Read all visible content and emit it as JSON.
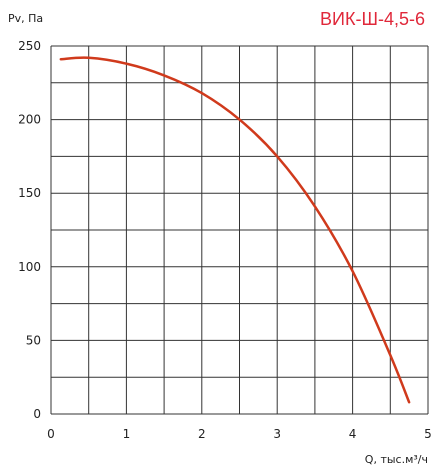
{
  "chart_data": {
    "type": "line",
    "title": "ВИК-Ш-4,5-6",
    "xlabel": "Q, тыс.м³/ч",
    "ylabel": "Pv, Па",
    "xlim": [
      0,
      5
    ],
    "ylim": [
      0,
      250
    ],
    "x_ticks": [
      "0",
      "1",
      "2",
      "3",
      "4",
      "5"
    ],
    "y_ticks": [
      "0",
      "50",
      "100",
      "150",
      "200",
      "250"
    ],
    "grid": true,
    "legend": "none",
    "series": [
      {
        "color": "#d03a1c",
        "x": [
          0.13,
          0.5,
          1.0,
          1.5,
          2.0,
          2.5,
          3.0,
          3.5,
          4.0,
          4.5,
          4.75
        ],
        "y": [
          241,
          242,
          238,
          230,
          218,
          200,
          175,
          141,
          97,
          40,
          8
        ]
      }
    ],
    "title_color": "#e0283a"
  }
}
